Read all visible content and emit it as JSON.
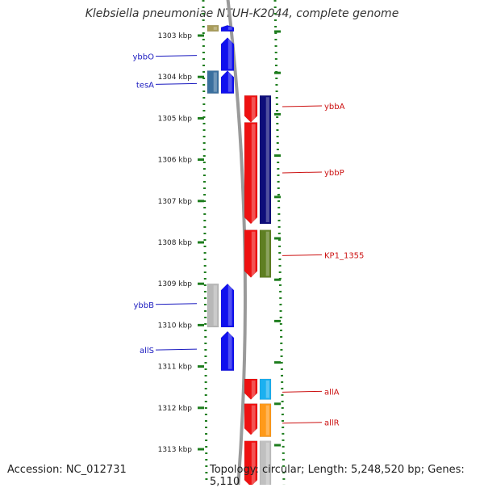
{
  "title": "Klebsiella pneumoniae NTUH-K2044, complete genome",
  "accession": "Accession: NC_012731",
  "topology": "Topology: circular; Length: 5,248,520 bp; Genes: 5,110",
  "colors": {
    "axis_dots": "#1e7d1e",
    "backbone": "#9a9a9a",
    "left_label": "#1a1abf",
    "right_label": "#cc1111"
  },
  "ticks": [
    "1303 kbp",
    "1304 kbp",
    "1305 kbp",
    "1306 kbp",
    "1307 kbp",
    "1308 kbp",
    "1309 kbp",
    "1310 kbp",
    "1311 kbp",
    "1312 kbp",
    "1313 kbp"
  ],
  "labels": {
    "left": [
      {
        "text": "ybbO",
        "kbp": 1303.5
      },
      {
        "text": "tesA",
        "kbp": 1304.18
      },
      {
        "text": "ybbB",
        "kbp": 1309.5
      },
      {
        "text": "allS",
        "kbp": 1310.6
      }
    ],
    "right": [
      {
        "text": "ybbA",
        "kbp": 1304.7
      },
      {
        "text": "ybbP",
        "kbp": 1306.3
      },
      {
        "text": "KP1_1355",
        "kbp": 1308.3
      },
      {
        "text": "allA",
        "kbp": 1311.6
      },
      {
        "text": "allR",
        "kbp": 1312.35
      }
    ]
  },
  "genes": {
    "left_lane_a": [
      {
        "start": 1302.75,
        "end": 1302.9,
        "color": "#a89c5a"
      },
      {
        "start": 1303.85,
        "end": 1304.4,
        "color": "#3a6f9e"
      },
      {
        "start": 1309.0,
        "end": 1310.05,
        "color": "#b8b8b8"
      }
    ],
    "left_lane_b": [
      {
        "start": 1302.75,
        "end": 1302.9,
        "color": "#1010ee",
        "strand": "+"
      },
      {
        "start": 1303.05,
        "end": 1303.85,
        "color": "#1010ee",
        "strand": "+"
      },
      {
        "start": 1303.85,
        "end": 1304.4,
        "color": "#1010ee",
        "strand": "+"
      },
      {
        "start": 1309.0,
        "end": 1310.05,
        "color": "#1010ee",
        "strand": "+"
      },
      {
        "start": 1310.15,
        "end": 1311.1,
        "color": "#1010ee",
        "strand": "+"
      }
    ],
    "right_lane_a": [
      {
        "start": 1304.45,
        "end": 1305.1,
        "color": "#ee1111",
        "strand": "-"
      },
      {
        "start": 1305.1,
        "end": 1307.55,
        "color": "#ee1111",
        "strand": "-"
      },
      {
        "start": 1307.7,
        "end": 1308.85,
        "color": "#ee1111",
        "strand": "-"
      },
      {
        "start": 1311.3,
        "end": 1311.8,
        "color": "#ee1111",
        "strand": "-"
      },
      {
        "start": 1311.9,
        "end": 1312.65,
        "color": "#ee1111",
        "strand": "-"
      },
      {
        "start": 1312.8,
        "end": 1313.9,
        "color": "#ee1111",
        "strand": "-"
      }
    ],
    "right_lane_b": [
      {
        "start": 1304.45,
        "end": 1307.55,
        "color": "#0d0d7a"
      },
      {
        "start": 1307.7,
        "end": 1308.85,
        "color": "#5f7f22"
      },
      {
        "start": 1311.3,
        "end": 1311.8,
        "color": "#1bb0f0"
      },
      {
        "start": 1311.9,
        "end": 1312.7,
        "color": "#ff9a1a"
      },
      {
        "start": 1312.8,
        "end": 1313.9,
        "color": "#c0c0c0"
      }
    ]
  }
}
